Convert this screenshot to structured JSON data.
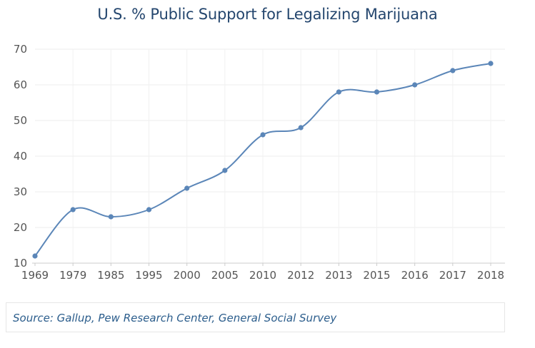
{
  "chart_data": {
    "type": "line",
    "title": "U.S. % Public Support for Legalizing Marijuana",
    "xlabel": "",
    "ylabel": "",
    "categories": [
      "1969",
      "1979",
      "1985",
      "1995",
      "2000",
      "2005",
      "2010",
      "2012",
      "2013",
      "2015",
      "2016",
      "2017",
      "2018"
    ],
    "series": [
      {
        "values": [
          12,
          25,
          23,
          25,
          31,
          36,
          46,
          48,
          58,
          58,
          60,
          64,
          66
        ]
      }
    ],
    "ylim": [
      10,
      70
    ],
    "yticks": [
      10,
      20,
      30,
      40,
      50,
      60,
      70
    ],
    "grid": true,
    "line_color": "#5b86b8",
    "source": "Source: Gallup, Pew Research Center, General Social Survey"
  }
}
